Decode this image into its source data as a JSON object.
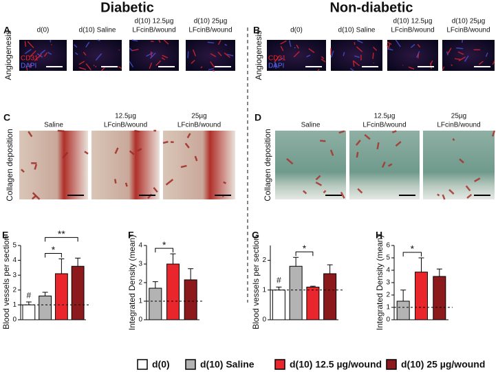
{
  "figure": {
    "titles": [
      "Diabetic",
      "Non-diabetic"
    ],
    "panels": [
      {
        "label": "A",
        "side_label": "Angiogenesis",
        "headers": [
          [
            "d(0)"
          ],
          [
            "d(10) Saline"
          ],
          [
            "d(10) 12.5µg",
            "LFcinB/wound"
          ],
          [
            "d(10) 25µg",
            "LFcinB/wound"
          ]
        ],
        "stain_labels": [
          "CD31",
          "DAPI"
        ]
      },
      {
        "label": "B",
        "side_label": "Angiogenesis",
        "headers": [
          [
            "d(0)"
          ],
          [
            "d(10) Saline"
          ],
          [
            "d(10) 12.5µg",
            "LFcinB/wound"
          ],
          [
            "d(10) 25µg",
            "LFcinB/wound"
          ]
        ],
        "stain_labels": [
          "CD31",
          "DAPI"
        ]
      },
      {
        "label": "C",
        "side_label": "Collagen deposition",
        "headers": [
          [
            "Saline"
          ],
          [
            "12.5µg",
            "LFcinB/wound"
          ],
          [
            "25µg",
            "LFcinB/wound"
          ]
        ]
      },
      {
        "label": "D",
        "side_label": "Collagen deposition",
        "headers": [
          [
            "Saline"
          ],
          [
            "12.5µg",
            "LFcinB/wound"
          ],
          [
            "25µg",
            "LFcinB/wound"
          ]
        ]
      }
    ],
    "legend": [
      {
        "name": "d(0)",
        "color": "#ffffff"
      },
      {
        "name": "d(10) Saline",
        "color": "#b3b3b3"
      },
      {
        "name": "d(10) 12.5 µg/wound",
        "color": "#e8262c"
      },
      {
        "name": "d(10) 25 µg/wound",
        "color": "#8c1a1c"
      }
    ]
  },
  "chart_data": [
    {
      "type": "bar",
      "label": "E",
      "ylabel": "Blood vessels per section",
      "values": [
        1.0,
        1.6,
        3.1,
        3.6
      ],
      "errors": [
        0.2,
        0.25,
        1.0,
        0.55
      ],
      "colors": [
        "#ffffff",
        "#b3b3b3",
        "#e8262c",
        "#8c1a1c"
      ],
      "ylim": [
        0,
        5
      ],
      "yticks": [
        0,
        1,
        2,
        3,
        4,
        5
      ],
      "reference_line": 1,
      "annotations": [
        {
          "text": "#",
          "bar": 0
        },
        {
          "text": "*",
          "from": 1,
          "to": 2
        },
        {
          "text": "**",
          "from": 1,
          "to": 3
        }
      ]
    },
    {
      "type": "bar",
      "label": "F",
      "ylabel": "Integrated Density (mean)",
      "values": [
        1.7,
        3.0,
        2.15
      ],
      "errors": [
        0.35,
        0.55,
        0.6
      ],
      "colors": [
        "#b3b3b3",
        "#e8262c",
        "#8c1a1c"
      ],
      "ylim": [
        0,
        4
      ],
      "yticks": [
        0,
        1,
        2,
        3,
        4
      ],
      "reference_line": 1,
      "annotations": [
        {
          "text": "*",
          "from": 0,
          "to": 1
        }
      ]
    },
    {
      "type": "bar",
      "label": "G",
      "ylabel": "Blood vessels per section",
      "values": [
        1.0,
        1.8,
        1.1,
        1.55
      ],
      "errors": [
        0.1,
        0.3,
        0.03,
        0.3
      ],
      "colors": [
        "#ffffff",
        "#b3b3b3",
        "#e8262c",
        "#8c1a1c"
      ],
      "ylim": [
        0,
        2.5
      ],
      "yticks": [
        0,
        1,
        2
      ],
      "reference_line": 1,
      "annotations": [
        {
          "text": "#",
          "bar": 0
        },
        {
          "text": "*",
          "from": 1,
          "to": 2
        }
      ]
    },
    {
      "type": "bar",
      "label": "H",
      "ylabel": "Integrated Density (mean)",
      "values": [
        1.5,
        3.85,
        3.5
      ],
      "errors": [
        0.9,
        1.15,
        0.6
      ],
      "colors": [
        "#b3b3b3",
        "#e8262c",
        "#8c1a1c"
      ],
      "ylim": [
        0,
        6
      ],
      "yticks": [
        0,
        1,
        2,
        3,
        4,
        5,
        6
      ],
      "reference_line": 1,
      "annotations": [
        {
          "text": "*",
          "from": 0,
          "to": 1
        }
      ]
    }
  ]
}
